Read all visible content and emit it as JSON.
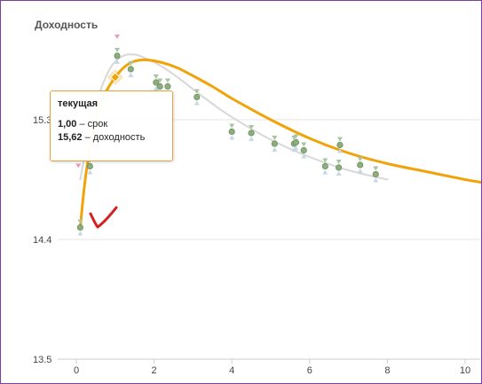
{
  "chart_data": {
    "type": "scatter",
    "title": "Доходность",
    "xlabel": "",
    "ylabel": "",
    "xlim": [
      -0.3,
      10.4
    ],
    "ylim": [
      13.5,
      15.9
    ],
    "x_ticks": [
      "0",
      "2",
      "4",
      "6",
      "8",
      "10"
    ],
    "y_ticks": [
      "13.5",
      "14.4",
      "15.3"
    ],
    "y_tick_values": [
      13.5,
      14.4,
      15.3
    ],
    "x_tick_values": [
      0,
      2,
      4,
      6,
      8,
      10
    ],
    "grid": true,
    "series": [
      {
        "kind": "curve",
        "color": "#f0a30a",
        "x": [
          0.1,
          0.25,
          0.5,
          0.75,
          1.0,
          1.25,
          1.5,
          1.8,
          2.2,
          2.6,
          3.0,
          3.5,
          4.0,
          5.0,
          6.0,
          7.0,
          8.0,
          9.0,
          10.0,
          10.4
        ],
        "y": [
          14.49,
          14.9,
          15.3,
          15.5,
          15.62,
          15.7,
          15.74,
          15.75,
          15.73,
          15.69,
          15.63,
          15.55,
          15.46,
          15.3,
          15.16,
          15.05,
          14.97,
          14.91,
          14.85,
          14.83
        ]
      },
      {
        "kind": "curve",
        "color": "#d8d8d8",
        "x": [
          0.1,
          0.3,
          0.6,
          0.9,
          1.2,
          1.5,
          1.8,
          2.2,
          2.6,
          3.0,
          3.5,
          4.0,
          5.0,
          6.0,
          7.0,
          8.0
        ],
        "y": [
          14.85,
          15.15,
          15.5,
          15.7,
          15.78,
          15.79,
          15.76,
          15.7,
          15.62,
          15.53,
          15.42,
          15.32,
          15.15,
          15.02,
          14.92,
          14.85
        ]
      },
      {
        "kind": "points",
        "color": "#8cae7c",
        "x": [
          0.1,
          0.35,
          1.05,
          1.4,
          2.05,
          2.15,
          2.35,
          3.1,
          4.0,
          4.5,
          5.1,
          5.6,
          5.65,
          5.85,
          6.4,
          6.75,
          6.78,
          7.3,
          7.7
        ],
        "y": [
          14.49,
          14.95,
          15.78,
          15.68,
          15.58,
          15.55,
          15.55,
          15.47,
          15.21,
          15.2,
          15.12,
          15.12,
          15.13,
          15.07,
          14.95,
          14.94,
          15.11,
          14.96,
          14.89
        ]
      }
    ],
    "highlight": {
      "x": 1.0,
      "y": 15.62
    },
    "tooltip": {
      "title": "текущая",
      "rows": [
        {
          "value": "1,00",
          "label": " – срок"
        },
        {
          "value": "15,62",
          "label": " – доходность"
        }
      ]
    },
    "annotation": {
      "type": "checkmark",
      "color": "#d42020"
    }
  }
}
